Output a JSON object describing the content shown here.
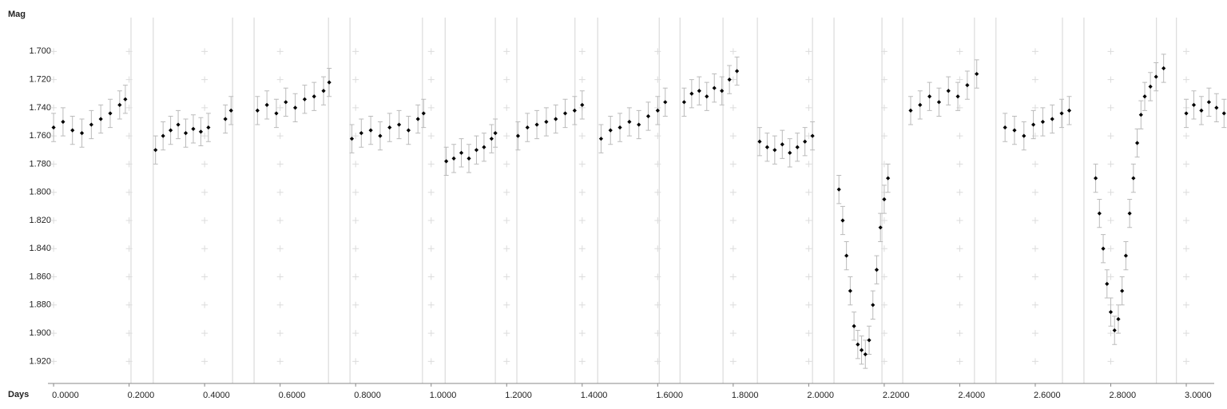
{
  "chart_data": {
    "type": "scatter",
    "x_label": "Days",
    "y_label": "Mag",
    "xlim": [
      -0.015,
      3.074
    ],
    "ylim": [
      1.676,
      1.93
    ],
    "invert_y": true,
    "xticks": [
      {
        "value": 0,
        "label": "0.0000"
      },
      {
        "value": 0.2,
        "label": "0.2000"
      },
      {
        "value": 0.4,
        "label": "0.4000"
      },
      {
        "value": 0.6,
        "label": "0.6000"
      },
      {
        "value": 0.8,
        "label": "0.8000"
      },
      {
        "value": 1.0,
        "label": "1.0000"
      },
      {
        "value": 1.2,
        "label": "1.2000"
      },
      {
        "value": 1.4,
        "label": "1.4000"
      },
      {
        "value": 1.6,
        "label": "1.6000"
      },
      {
        "value": 1.8,
        "label": "1.8000"
      },
      {
        "value": 2.0,
        "label": "2.0000"
      },
      {
        "value": 2.2,
        "label": "2.2000"
      },
      {
        "value": 2.4,
        "label": "2.4000"
      },
      {
        "value": 2.6,
        "label": "2.6000"
      },
      {
        "value": 2.8,
        "label": "2.8000"
      },
      {
        "value": 3.0,
        "label": "3.0000"
      }
    ],
    "yticks": [
      {
        "value": 1.7,
        "label": "1.700"
      },
      {
        "value": 1.72,
        "label": "1.720"
      },
      {
        "value": 1.74,
        "label": "1.740"
      },
      {
        "value": 1.76,
        "label": "1.760"
      },
      {
        "value": 1.78,
        "label": "1.780"
      },
      {
        "value": 1.8,
        "label": "1.800"
      },
      {
        "value": 1.82,
        "label": "1.820"
      },
      {
        "value": 1.84,
        "label": "1.840"
      },
      {
        "value": 1.86,
        "label": "1.860"
      },
      {
        "value": 1.88,
        "label": "1.880"
      },
      {
        "value": 1.9,
        "label": "1.900"
      },
      {
        "value": 1.92,
        "label": "1.920"
      }
    ],
    "grid": "cross",
    "color": "#000000",
    "error_color": "#bbbbbb",
    "yerr": 0.01,
    "gap_lines": [
      0.205,
      0.264,
      0.474,
      0.531,
      0.728,
      0.785,
      0.977,
      1.037,
      1.17,
      1.227,
      1.381,
      1.441,
      1.604,
      1.659,
      1.773,
      1.864,
      2.01,
      2.067,
      2.194,
      2.249,
      2.439,
      2.496,
      2.672,
      2.729,
      2.921,
      2.974
    ],
    "x": [
      0.0,
      0.025,
      0.05,
      0.075,
      0.1,
      0.125,
      0.15,
      0.175,
      0.19,
      0.27,
      0.29,
      0.31,
      0.33,
      0.35,
      0.37,
      0.39,
      0.41,
      0.455,
      0.47,
      0.54,
      0.565,
      0.59,
      0.615,
      0.64,
      0.665,
      0.69,
      0.715,
      0.73,
      0.79,
      0.815,
      0.84,
      0.865,
      0.89,
      0.915,
      0.94,
      0.965,
      0.98,
      1.04,
      1.06,
      1.08,
      1.1,
      1.12,
      1.14,
      1.16,
      1.17,
      1.23,
      1.255,
      1.28,
      1.305,
      1.33,
      1.355,
      1.38,
      1.4,
      1.45,
      1.475,
      1.5,
      1.525,
      1.55,
      1.575,
      1.6,
      1.62,
      1.67,
      1.69,
      1.71,
      1.73,
      1.75,
      1.77,
      1.79,
      1.81,
      1.87,
      1.89,
      1.91,
      1.93,
      1.95,
      1.97,
      1.99,
      2.01,
      2.08,
      2.09,
      2.1,
      2.11,
      2.12,
      2.13,
      2.14,
      2.15,
      2.16,
      2.17,
      2.18,
      2.19,
      2.2,
      2.21,
      2.27,
      2.295,
      2.32,
      2.345,
      2.37,
      2.395,
      2.42,
      2.445,
      2.52,
      2.545,
      2.57,
      2.595,
      2.62,
      2.645,
      2.67,
      2.69,
      2.76,
      2.77,
      2.78,
      2.79,
      2.8,
      2.81,
      2.82,
      2.83,
      2.84,
      2.85,
      2.86,
      2.87,
      2.88,
      2.89,
      2.905,
      2.92,
      2.94,
      3.0,
      3.02,
      3.04,
      3.06,
      3.08,
      3.1
    ],
    "y": [
      1.754,
      1.75,
      1.756,
      1.758,
      1.752,
      1.748,
      1.744,
      1.738,
      1.734,
      1.77,
      1.76,
      1.756,
      1.752,
      1.758,
      1.755,
      1.757,
      1.754,
      1.748,
      1.742,
      1.742,
      1.738,
      1.744,
      1.736,
      1.74,
      1.734,
      1.732,
      1.728,
      1.722,
      1.762,
      1.758,
      1.756,
      1.76,
      1.754,
      1.752,
      1.756,
      1.748,
      1.744,
      1.778,
      1.776,
      1.772,
      1.776,
      1.77,
      1.768,
      1.762,
      1.758,
      1.76,
      1.754,
      1.752,
      1.75,
      1.748,
      1.744,
      1.742,
      1.738,
      1.762,
      1.756,
      1.754,
      1.75,
      1.752,
      1.746,
      1.742,
      1.736,
      1.736,
      1.73,
      1.728,
      1.732,
      1.726,
      1.728,
      1.72,
      1.714,
      1.764,
      1.768,
      1.77,
      1.766,
      1.772,
      1.768,
      1.764,
      1.76,
      1.798,
      1.82,
      1.845,
      1.87,
      1.895,
      1.908,
      1.912,
      1.915,
      1.905,
      1.88,
      1.855,
      1.825,
      1.805,
      1.79,
      1.742,
      1.738,
      1.732,
      1.736,
      1.728,
      1.732,
      1.724,
      1.716,
      1.754,
      1.756,
      1.76,
      1.752,
      1.75,
      1.748,
      1.744,
      1.742,
      1.79,
      1.815,
      1.84,
      1.865,
      1.885,
      1.898,
      1.89,
      1.87,
      1.845,
      1.815,
      1.79,
      1.765,
      1.745,
      1.732,
      1.725,
      1.718,
      1.712,
      1.744,
      1.738,
      1.742,
      1.736,
      1.74,
      1.744
    ]
  }
}
